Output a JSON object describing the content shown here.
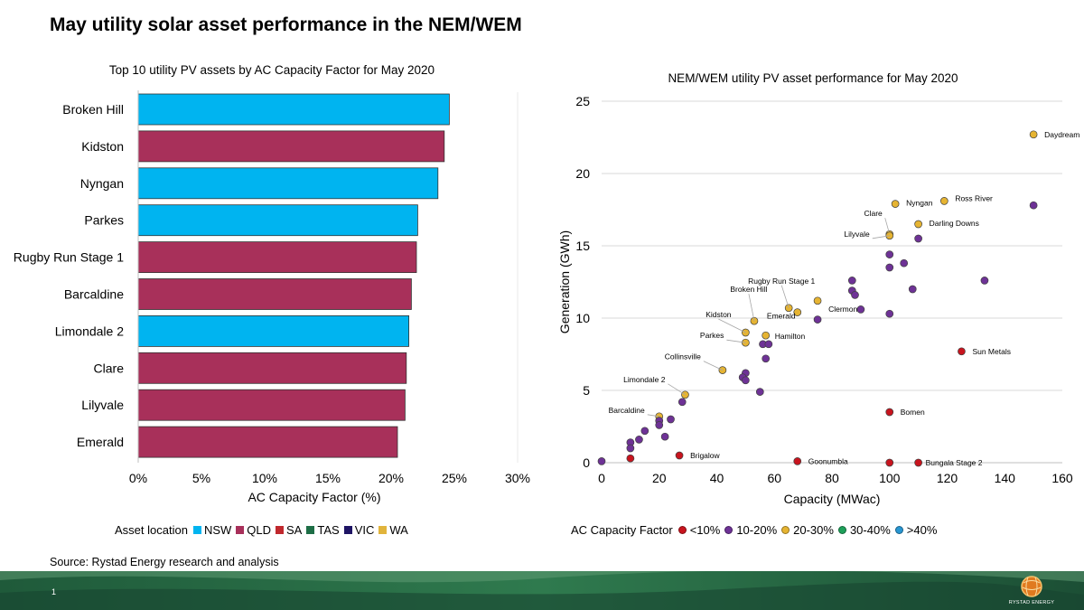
{
  "title": "May utility solar asset performance in the NEM/WEM",
  "source": "Source: Rystad Energy research and analysis",
  "page_number": "1",
  "logo_text": "RYSTAD ENERGY",
  "bar_legend": {
    "title": "Asset location",
    "items": [
      {
        "label": "NSW",
        "color": "#00B4F0"
      },
      {
        "label": "QLD",
        "color": "#A8305A"
      },
      {
        "label": "SA",
        "color": "#C0282D"
      },
      {
        "label": "TAS",
        "color": "#1E6E46"
      },
      {
        "label": "VIC",
        "color": "#1E1464"
      },
      {
        "label": "WA",
        "color": "#E1B43C"
      }
    ]
  },
  "scatter_legend": {
    "title": "AC Capacity Factor",
    "items": [
      {
        "label": "<10%",
        "color": "#C8141E"
      },
      {
        "label": "10-20%",
        "color": "#6E3296"
      },
      {
        "label": "20-30%",
        "color": "#E6B432"
      },
      {
        "label": "30-40%",
        "color": "#1EA05A"
      },
      {
        "label": ">40%",
        "color": "#2896D2"
      }
    ]
  },
  "chart_data": [
    {
      "type": "bar",
      "orientation": "horizontal",
      "title": "Top 10 utility PV assets by AC Capacity Factor for May 2020",
      "xlabel": "AC Capacity Factor (%)",
      "xlim": [
        0,
        30
      ],
      "xticks": [
        "0%",
        "5%",
        "10%",
        "15%",
        "20%",
        "25%",
        "30%"
      ],
      "categories": [
        "Broken Hill",
        "Kidston",
        "Nyngan",
        "Parkes",
        "Rugby Run Stage 1",
        "Barcaldine",
        "Limondale  2",
        "Clare",
        "Lilyvale",
        "Emerald"
      ],
      "values": [
        24.6,
        24.2,
        23.7,
        22.1,
        22.0,
        21.6,
        21.4,
        21.2,
        21.1,
        20.5
      ],
      "locations": [
        "NSW",
        "QLD",
        "NSW",
        "NSW",
        "QLD",
        "QLD",
        "NSW",
        "QLD",
        "QLD",
        "QLD"
      ],
      "colors": {
        "NSW": "#00B4F0",
        "QLD": "#A8305A"
      },
      "grid": false
    },
    {
      "type": "scatter",
      "title": "NEM/WEM utility PV asset performance for May 2020",
      "xlabel": "Capacity (MWac)",
      "ylabel": "Generation (GWh)",
      "xlim": [
        0,
        160
      ],
      "ylim": [
        0,
        25
      ],
      "xticks": [
        "0",
        "20",
        "40",
        "60",
        "80",
        "100",
        "120",
        "140",
        "160"
      ],
      "yticks": [
        "0",
        "5",
        "10",
        "15",
        "20",
        "25"
      ],
      "grid": true,
      "category_colors": {
        "<10%": "#C8141E",
        "10-20%": "#6E3296",
        "20-30%": "#E6B432"
      },
      "points": [
        {
          "x": 150,
          "y": 22.7,
          "cf": "20-30%",
          "label": "Daydream"
        },
        {
          "x": 119,
          "y": 18.1,
          "cf": "20-30%",
          "label": "Ross River"
        },
        {
          "x": 102,
          "y": 17.9,
          "cf": "20-30%",
          "label": "Nyngan"
        },
        {
          "x": 100,
          "y": 15.8,
          "cf": "20-30%",
          "label": "Clare"
        },
        {
          "x": 100,
          "y": 15.7,
          "cf": "20-30%",
          "label": "Lilyvale"
        },
        {
          "x": 110,
          "y": 16.5,
          "cf": "20-30%",
          "label": "Darling Downs"
        },
        {
          "x": 75,
          "y": 11.2,
          "cf": "20-30%",
          "label": "Clermont"
        },
        {
          "x": 65,
          "y": 10.7,
          "cf": "20-30%",
          "label": "Rugby Run Stage 1"
        },
        {
          "x": 68,
          "y": 10.4,
          "cf": "20-30%",
          "label": "Emerald"
        },
        {
          "x": 53,
          "y": 9.8,
          "cf": "20-30%",
          "label": "Broken Hill"
        },
        {
          "x": 50,
          "y": 9.0,
          "cf": "20-30%",
          "label": "Kidston"
        },
        {
          "x": 57,
          "y": 8.8,
          "cf": "20-30%",
          "label": "Hamilton"
        },
        {
          "x": 50,
          "y": 8.3,
          "cf": "20-30%",
          "label": "Parkes"
        },
        {
          "x": 42,
          "y": 6.4,
          "cf": "20-30%",
          "label": "Collinsville"
        },
        {
          "x": 29,
          "y": 4.7,
          "cf": "20-30%",
          "label": "Limondale  2"
        },
        {
          "x": 20,
          "y": 3.2,
          "cf": "20-30%",
          "label": "Barcaldine"
        },
        {
          "x": 125,
          "y": 7.7,
          "cf": "<10%",
          "label": "Sun Metals"
        },
        {
          "x": 100,
          "y": 3.5,
          "cf": "<10%",
          "label": "Bomen"
        },
        {
          "x": 27,
          "y": 0.5,
          "cf": "<10%",
          "label": "Brigalow"
        },
        {
          "x": 68,
          "y": 0.1,
          "cf": "<10%",
          "label": "Goonumbla"
        },
        {
          "x": 110,
          "y": 0.0,
          "cf": "<10%",
          "label": "Bungala Stage 2"
        },
        {
          "x": 100,
          "y": 0.0,
          "cf": "<10%",
          "label": ""
        },
        {
          "x": 10,
          "y": 0.3,
          "cf": "<10%",
          "label": ""
        },
        {
          "x": 150,
          "y": 17.8,
          "cf": "10-20%",
          "label": ""
        },
        {
          "x": 110,
          "y": 15.5,
          "cf": "10-20%",
          "label": ""
        },
        {
          "x": 100,
          "y": 14.4,
          "cf": "10-20%",
          "label": ""
        },
        {
          "x": 105,
          "y": 13.8,
          "cf": "10-20%",
          "label": ""
        },
        {
          "x": 100,
          "y": 13.5,
          "cf": "10-20%",
          "label": ""
        },
        {
          "x": 133,
          "y": 12.6,
          "cf": "10-20%",
          "label": ""
        },
        {
          "x": 87,
          "y": 12.6,
          "cf": "10-20%",
          "label": ""
        },
        {
          "x": 87,
          "y": 11.9,
          "cf": "10-20%",
          "label": ""
        },
        {
          "x": 88,
          "y": 11.6,
          "cf": "10-20%",
          "label": ""
        },
        {
          "x": 108,
          "y": 12.0,
          "cf": "10-20%",
          "label": ""
        },
        {
          "x": 90,
          "y": 10.6,
          "cf": "10-20%",
          "label": ""
        },
        {
          "x": 100,
          "y": 10.3,
          "cf": "10-20%",
          "label": ""
        },
        {
          "x": 75,
          "y": 9.9,
          "cf": "10-20%",
          "label": ""
        },
        {
          "x": 56,
          "y": 8.2,
          "cf": "10-20%",
          "label": ""
        },
        {
          "x": 58,
          "y": 8.2,
          "cf": "10-20%",
          "label": ""
        },
        {
          "x": 57,
          "y": 7.2,
          "cf": "10-20%",
          "label": ""
        },
        {
          "x": 50,
          "y": 6.2,
          "cf": "10-20%",
          "label": ""
        },
        {
          "x": 49,
          "y": 5.9,
          "cf": "10-20%",
          "label": ""
        },
        {
          "x": 50,
          "y": 5.7,
          "cf": "10-20%",
          "label": ""
        },
        {
          "x": 55,
          "y": 4.9,
          "cf": "10-20%",
          "label": ""
        },
        {
          "x": 28,
          "y": 4.2,
          "cf": "10-20%",
          "label": ""
        },
        {
          "x": 24,
          "y": 3.0,
          "cf": "10-20%",
          "label": ""
        },
        {
          "x": 20,
          "y": 2.9,
          "cf": "10-20%",
          "label": ""
        },
        {
          "x": 20,
          "y": 2.6,
          "cf": "10-20%",
          "label": ""
        },
        {
          "x": 15,
          "y": 2.2,
          "cf": "10-20%",
          "label": ""
        },
        {
          "x": 22,
          "y": 1.8,
          "cf": "10-20%",
          "label": ""
        },
        {
          "x": 13,
          "y": 1.6,
          "cf": "10-20%",
          "label": ""
        },
        {
          "x": 10,
          "y": 1.4,
          "cf": "10-20%",
          "label": ""
        },
        {
          "x": 10,
          "y": 1.0,
          "cf": "10-20%",
          "label": ""
        },
        {
          "x": 0,
          "y": 0.1,
          "cf": "10-20%",
          "label": ""
        }
      ]
    }
  ]
}
